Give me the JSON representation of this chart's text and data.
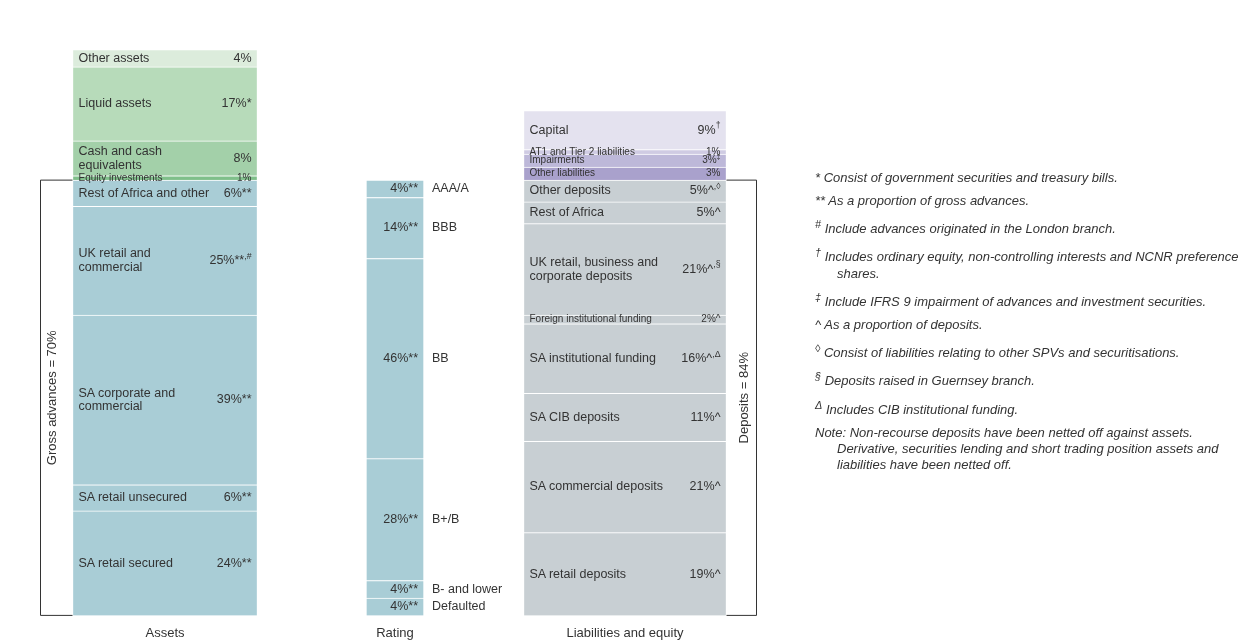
{
  "chart_data": {
    "type": "bar",
    "stacked": true,
    "categories": [
      "Assets",
      "Rating",
      "Liabilities and equity"
    ],
    "series": [
      {
        "name": "SA retail secured",
        "color": "#a9cdd6",
        "values": [
          24,
          null,
          null
        ],
        "value_labels": [
          "24%**",
          null,
          null
        ]
      },
      {
        "name": "SA retail unsecured",
        "color": "#a9cdd6",
        "values": [
          6,
          null,
          null
        ],
        "value_labels": [
          "6%**",
          null,
          null
        ]
      },
      {
        "name": "SA corporate and commercial",
        "color": "#a9cdd6",
        "values": [
          39,
          null,
          null
        ],
        "value_labels": [
          "39%**",
          null,
          null
        ]
      },
      {
        "name": "UK retail and commercial",
        "color": "#a9cdd6",
        "values": [
          25,
          null,
          null
        ],
        "value_labels": [
          "25%**$^{,#}$",
          null,
          null
        ]
      },
      {
        "name": "Rest of Africa and other",
        "color": "#a9cdd6",
        "values": [
          6,
          null,
          null
        ],
        "value_labels": [
          "6%**",
          null,
          null
        ]
      },
      {
        "name": "Equity investments",
        "color": "#7fbf8a",
        "values": [
          1,
          null,
          null
        ],
        "value_labels": [
          "1%",
          null,
          null
        ]
      },
      {
        "name": "Cash and cash equivalents",
        "color": "#a3d0a9",
        "values": [
          8,
          null,
          null
        ],
        "value_labels": [
          "8%",
          null,
          null
        ]
      },
      {
        "name": "Liquid assets",
        "color": "#b7dbba",
        "values": [
          17,
          null,
          null
        ],
        "value_labels": [
          "17%*",
          null,
          null
        ]
      },
      {
        "name": "Other assets",
        "color": "#dcecdc",
        "values": [
          4,
          null,
          null
        ],
        "value_labels": [
          "4%",
          null,
          null
        ]
      },
      {
        "name": "Defaulted",
        "color": "#a9cdd6",
        "values": [
          null,
          4,
          null
        ],
        "value_labels": [
          null,
          "4%**",
          null
        ]
      },
      {
        "name": "B- and lower",
        "color": "#a9cdd6",
        "values": [
          null,
          4,
          null
        ],
        "value_labels": [
          null,
          "4%**",
          null
        ]
      },
      {
        "name": "B+/B",
        "color": "#a9cdd6",
        "values": [
          null,
          28,
          null
        ],
        "value_labels": [
          null,
          "28%**",
          null
        ]
      },
      {
        "name": "BB",
        "color": "#a9cdd6",
        "values": [
          null,
          46,
          null
        ],
        "value_labels": [
          null,
          "46%**",
          null
        ]
      },
      {
        "name": "BBB",
        "color": "#a9cdd6",
        "values": [
          null,
          14,
          null
        ],
        "value_labels": [
          null,
          "14%**",
          null
        ]
      },
      {
        "name": "AAA/A",
        "color": "#a9cdd6",
        "values": [
          null,
          4,
          null
        ],
        "value_labels": [
          null,
          "4%**",
          null
        ]
      },
      {
        "name": "SA retail deposits",
        "color": "#c8cfd3",
        "values": [
          null,
          null,
          19
        ],
        "value_labels": [
          null,
          null,
          "19%^"
        ]
      },
      {
        "name": "SA commercial deposits",
        "color": "#c8cfd3",
        "values": [
          null,
          null,
          21
        ],
        "value_labels": [
          null,
          null,
          "21%^"
        ]
      },
      {
        "name": "SA CIB deposits",
        "color": "#c8cfd3",
        "values": [
          null,
          null,
          11
        ],
        "value_labels": [
          null,
          null,
          "11%^"
        ]
      },
      {
        "name": "SA institutional funding",
        "color": "#c8cfd3",
        "values": [
          null,
          null,
          16
        ],
        "value_labels": [
          null,
          null,
          "16%^$^{,Δ}$"
        ]
      },
      {
        "name": "Foreign institutional funding",
        "color": "#c8cfd3",
        "values": [
          null,
          null,
          2
        ],
        "value_labels": [
          null,
          null,
          "2%^"
        ]
      },
      {
        "name": "UK retail, business and corporate deposits",
        "color": "#c8cfd3",
        "values": [
          null,
          null,
          21
        ],
        "value_labels": [
          null,
          null,
          "21%^$^{,§}$"
        ]
      },
      {
        "name": "Rest of Africa",
        "color": "#c8cfd3",
        "values": [
          null,
          null,
          5
        ],
        "value_labels": [
          null,
          null,
          "5%^"
        ]
      },
      {
        "name": "Other deposits",
        "color": "#c8cfd3",
        "values": [
          null,
          null,
          5
        ],
        "value_labels": [
          null,
          null,
          "5%^$^{,◊}$"
        ]
      },
      {
        "name": "Other liabilities",
        "color": "#a9a1cc",
        "values": [
          null,
          null,
          3
        ],
        "value_labels": [
          null,
          null,
          "3%"
        ]
      },
      {
        "name": "Impairments",
        "color": "#bdb8d9",
        "values": [
          null,
          null,
          3
        ],
        "value_labels": [
          null,
          null,
          "3%$^{‡}$"
        ]
      },
      {
        "name": "AT1 and Tier 2 liabilities",
        "color": "#cfcbe3",
        "values": [
          null,
          null,
          1
        ],
        "value_labels": [
          null,
          null,
          "1%"
        ]
      },
      {
        "name": "Capital",
        "color": "#e4e2ef",
        "values": [
          null,
          null,
          9
        ],
        "value_labels": [
          null,
          null,
          "9%$^{†}$"
        ]
      }
    ],
    "annotations": [
      "Gross advances = 70%",
      "Deposits = 84%",
      "* Consist of government securities and treasury bills.",
      "** As a proportion of gross advances.",
      "$^{#}$ Include advances originated in the London branch.",
      "$^{†}$ Includes ordinary equity, non-controlling interests and NCNR preference shares.",
      "$^{‡}$ Include IFRS 9 impairment of advances and investment securities.",
      "^ As a proportion of deposits.",
      "$^{◊}$ Consist of liabilities relating to other SPVs and securitisations.",
      "$^{§}$ Deposits raised in Guernsey branch.",
      "$^{Δ}$ Includes CIB institutional funding.",
      "Note: Non-recourse deposits have been netted off against assets. Derivative, securities lending and short trading position assets and liabilities have been netted off."
    ]
  }
}
